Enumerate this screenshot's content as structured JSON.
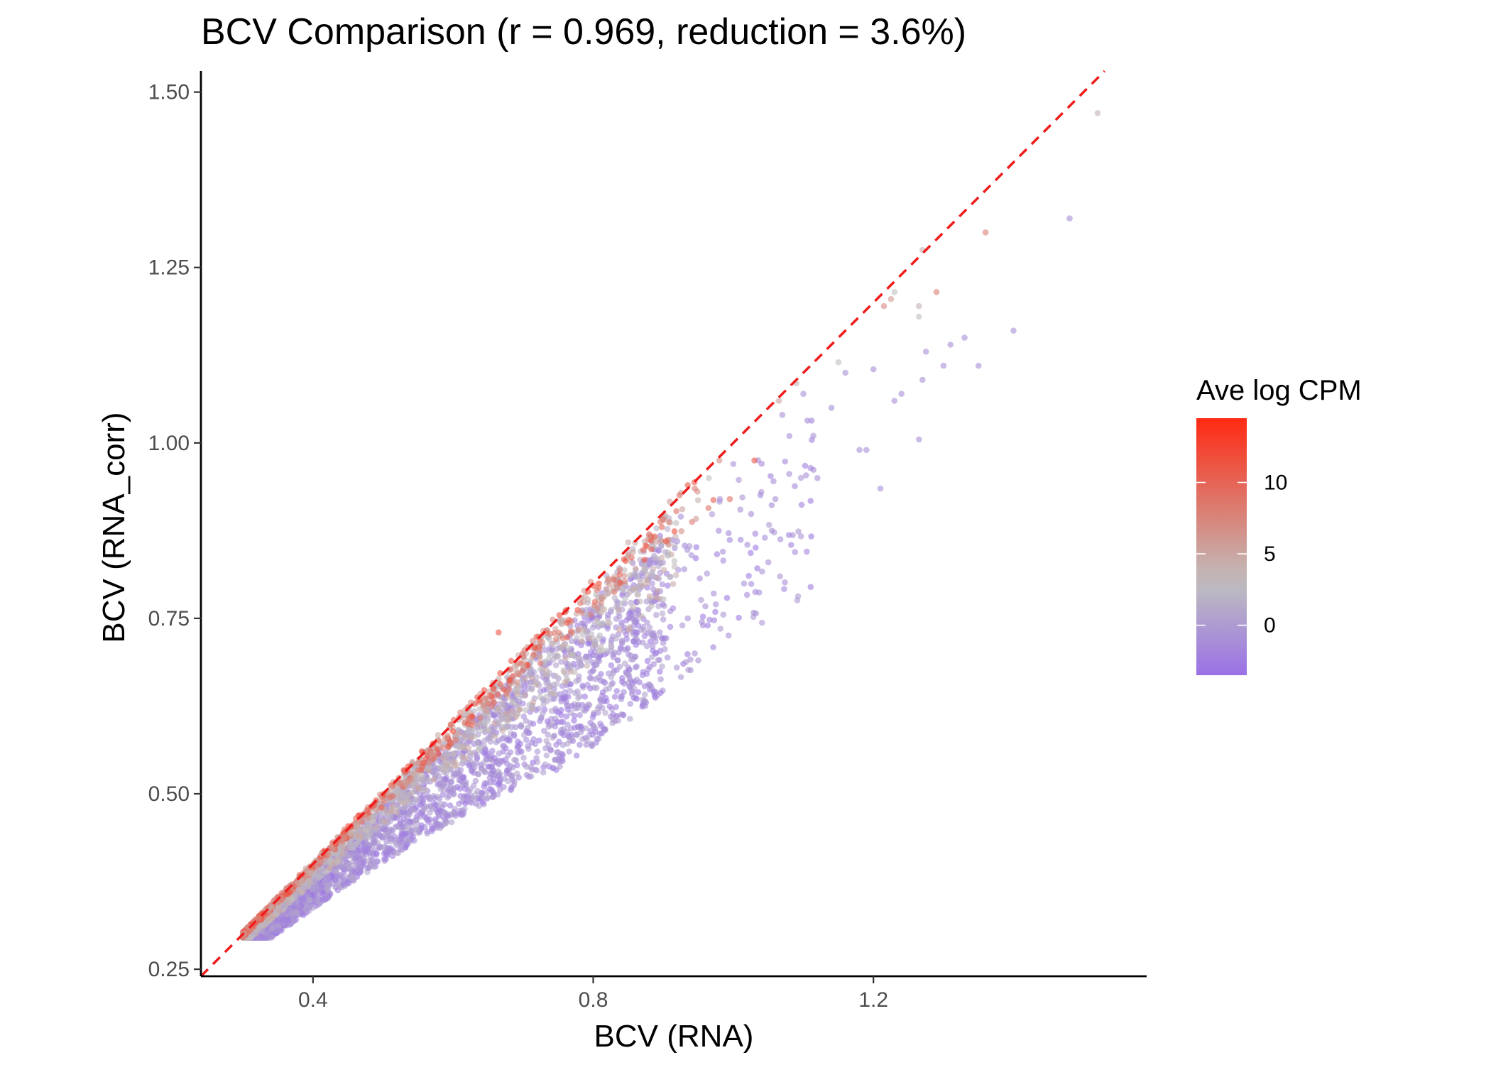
{
  "chart_data": {
    "type": "scatter",
    "title": "BCV Comparison (r = 0.969, reduction = 3.6%)",
    "xlabel": "BCV (RNA)",
    "ylabel": "BCV (RNA_corr)",
    "xlim": [
      0.24,
      1.59
    ],
    "ylim": [
      0.24,
      1.53
    ],
    "x_ticks": [
      0.4,
      0.8,
      1.2
    ],
    "x_tick_labels": [
      "0.4",
      "0.8",
      "1.2"
    ],
    "y_ticks": [
      0.25,
      0.5,
      0.75,
      1.0,
      1.25,
      1.5
    ],
    "y_tick_labels": [
      "0.25",
      "0.50",
      "0.75",
      "1.00",
      "1.25",
      "1.50"
    ],
    "grid": false,
    "reference_line": {
      "type": "identity",
      "slope": 1,
      "intercept": 0,
      "style": "dashed",
      "color": "#ee1c1c"
    },
    "color_scale": {
      "title": "Ave log CPM",
      "min": -3.5,
      "max": 14.5,
      "low_color": "#9a71e6",
      "mid_color": "#bfbfbf",
      "high_color": "#ff2a12",
      "mid_value": 3,
      "ticks": [
        0,
        5,
        10
      ],
      "tick_labels": [
        "0",
        "5",
        "10"
      ]
    },
    "legend_position": "right",
    "point_alpha": 0.6,
    "points": [
      {
        "x": 1.52,
        "y": 1.47,
        "c": 4
      },
      {
        "x": 1.48,
        "y": 1.32,
        "c": -1
      },
      {
        "x": 1.4,
        "y": 1.16,
        "c": -1
      },
      {
        "x": 1.36,
        "y": 1.3,
        "c": 8
      },
      {
        "x": 1.35,
        "y": 1.11,
        "c": -1
      },
      {
        "x": 1.33,
        "y": 1.15,
        "c": -1
      },
      {
        "x": 1.31,
        "y": 1.14,
        "c": -1
      },
      {
        "x": 1.3,
        "y": 1.11,
        "c": -1
      },
      {
        "x": 1.29,
        "y": 1.215,
        "c": 8
      },
      {
        "x": 1.275,
        "y": 1.13,
        "c": -1
      },
      {
        "x": 1.27,
        "y": 1.09,
        "c": -1
      },
      {
        "x": 1.265,
        "y": 1.18,
        "c": 3
      },
      {
        "x": 1.265,
        "y": 1.195,
        "c": 4
      },
      {
        "x": 1.27,
        "y": 1.275,
        "c": 4
      },
      {
        "x": 1.265,
        "y": 1.005,
        "c": -1
      },
      {
        "x": 1.24,
        "y": 1.07,
        "c": -1
      },
      {
        "x": 1.23,
        "y": 1.06,
        "c": -1
      },
      {
        "x": 1.23,
        "y": 1.215,
        "c": 3
      },
      {
        "x": 1.225,
        "y": 1.205,
        "c": 6
      },
      {
        "x": 1.215,
        "y": 1.195,
        "c": 7
      },
      {
        "x": 1.21,
        "y": 0.935,
        "c": -1
      },
      {
        "x": 1.2,
        "y": 1.105,
        "c": -1
      },
      {
        "x": 1.19,
        "y": 0.99,
        "c": -1
      },
      {
        "x": 1.18,
        "y": 0.99,
        "c": -1
      },
      {
        "x": 1.16,
        "y": 1.1,
        "c": -1
      },
      {
        "x": 1.15,
        "y": 1.115,
        "c": 3
      },
      {
        "x": 1.14,
        "y": 1.05,
        "c": -1
      },
      {
        "x": 1.12,
        "y": 0.95,
        "c": -1
      },
      {
        "x": 1.1,
        "y": 1.07,
        "c": -1
      },
      {
        "x": 1.09,
        "y": 1.085,
        "c": 4
      },
      {
        "x": 1.08,
        "y": 1.01,
        "c": -1
      },
      {
        "x": 1.07,
        "y": 1.04,
        "c": -1
      },
      {
        "x": 1.065,
        "y": 1.06,
        "c": 5
      },
      {
        "x": 1.06,
        "y": 0.92,
        "c": -1
      },
      {
        "x": 1.055,
        "y": 0.875,
        "c": -1
      },
      {
        "x": 1.05,
        "y": 0.83,
        "c": -1
      },
      {
        "x": 1.045,
        "y": 0.865,
        "c": -1
      },
      {
        "x": 1.04,
        "y": 0.93,
        "c": -1
      },
      {
        "x": 1.03,
        "y": 0.975,
        "c": 11
      },
      {
        "x": 1.02,
        "y": 0.855,
        "c": -1
      },
      {
        "x": 1.01,
        "y": 0.905,
        "c": -1
      },
      {
        "x": 1.0,
        "y": 0.97,
        "c": -1
      },
      {
        "x": 0.995,
        "y": 0.92,
        "c": 9
      },
      {
        "x": 0.985,
        "y": 0.845,
        "c": -1
      },
      {
        "x": 0.975,
        "y": 0.77,
        "c": -1
      },
      {
        "x": 0.965,
        "y": 0.95,
        "c": 3
      },
      {
        "x": 0.955,
        "y": 0.745,
        "c": -1
      },
      {
        "x": 0.95,
        "y": 0.69,
        "c": -1
      },
      {
        "x": 0.945,
        "y": 0.7,
        "c": -1
      },
      {
        "x": 0.935,
        "y": 0.75,
        "c": -1
      },
      {
        "x": 0.93,
        "y": 0.82,
        "c": -1
      },
      {
        "x": 0.925,
        "y": 0.895,
        "c": -1
      },
      {
        "x": 0.92,
        "y": 0.86,
        "c": -1
      },
      {
        "x": 0.91,
        "y": 0.76,
        "c": -1
      },
      {
        "x": 0.9,
        "y": 0.715,
        "c": -1
      },
      {
        "x": 0.895,
        "y": 0.73,
        "c": -1
      },
      {
        "x": 0.88,
        "y": 0.655,
        "c": -1
      },
      {
        "x": 0.87,
        "y": 0.81,
        "c": -1
      },
      {
        "x": 0.86,
        "y": 0.72,
        "c": -1
      },
      {
        "x": 0.85,
        "y": 0.68,
        "c": -1
      },
      {
        "x": 0.84,
        "y": 0.635,
        "c": -1
      },
      {
        "x": 0.835,
        "y": 0.69,
        "c": -1
      },
      {
        "x": 0.825,
        "y": 0.61,
        "c": -1
      },
      {
        "x": 0.815,
        "y": 0.66,
        "c": -1
      },
      {
        "x": 0.81,
        "y": 0.6,
        "c": -1
      },
      {
        "x": 0.79,
        "y": 0.57,
        "c": -1
      },
      {
        "x": 0.665,
        "y": 0.73,
        "c": 11
      },
      {
        "x": 0.85,
        "y": 0.84,
        "c": 7
      },
      {
        "x": 0.88,
        "y": 0.87,
        "c": 9
      },
      {
        "x": 0.9,
        "y": 0.89,
        "c": 6
      },
      {
        "x": 0.945,
        "y": 0.935,
        "c": 8
      },
      {
        "x": 0.98,
        "y": 0.975,
        "c": 7
      }
    ],
    "point_clouds": [
      {
        "name": "near-diagonal high expression",
        "n": 700,
        "x_range": [
          0.3,
          0.98
        ],
        "min_ratio": 0.93,
        "max_ratio": 1.01,
        "c_range": [
          4,
          12
        ],
        "power": 2.6
      },
      {
        "name": "gray band",
        "n": 1300,
        "x_range": [
          0.3,
          0.92
        ],
        "min_ratio": 0.86,
        "max_ratio": 1.0,
        "c_range": [
          1,
          5
        ],
        "power": 2.2
      },
      {
        "name": "low expression bulk",
        "n": 2600,
        "x_range": [
          0.3,
          0.9
        ],
        "min_ratio": 0.74,
        "max_ratio": 0.97,
        "c_range": [
          -3,
          1
        ],
        "power": 1.7
      },
      {
        "name": "low expression tail",
        "n": 180,
        "x_range": [
          0.75,
          1.12
        ],
        "min_ratio": 0.76,
        "max_ratio": 0.95,
        "c_range": [
          -3,
          0
        ],
        "power": 1.0
      }
    ]
  }
}
